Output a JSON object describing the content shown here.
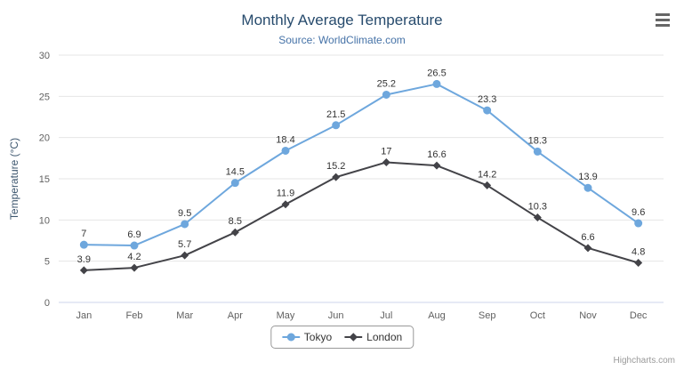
{
  "header": {
    "title": "Monthly Average Temperature",
    "subtitle": "Source: WorldClimate.com"
  },
  "credit": "Highcharts.com",
  "colors": {
    "tokyo": "#6ea7dd",
    "london": "#434348",
    "title": "#274b6d",
    "subtitle": "#4572a7",
    "grid": "#e6e6e6",
    "axis_line": "#ccd6eb",
    "tick_label": "#606060",
    "data_label": "#333333"
  },
  "chart_data": {
    "type": "line",
    "title": "Monthly Average Temperature",
    "subtitle": "Source: WorldClimate.com",
    "categories": [
      "Jan",
      "Feb",
      "Mar",
      "Apr",
      "May",
      "Jun",
      "Jul",
      "Aug",
      "Sep",
      "Oct",
      "Nov",
      "Dec"
    ],
    "series": [
      {
        "name": "Tokyo",
        "color": "#6ea7dd",
        "marker": "circle",
        "values": [
          7,
          6.9,
          9.5,
          14.5,
          18.4,
          21.5,
          25.2,
          26.5,
          23.3,
          18.3,
          13.9,
          9.6
        ]
      },
      {
        "name": "London",
        "color": "#434348",
        "marker": "diamond",
        "values": [
          3.9,
          4.2,
          5.7,
          8.5,
          11.9,
          15.2,
          17,
          16.6,
          14.2,
          10.3,
          6.6,
          4.8
        ]
      }
    ],
    "xlabel": "",
    "ylabel": "Temperature (°C)",
    "ylim": [
      0,
      30
    ],
    "yticks": [
      0,
      5,
      10,
      15,
      20,
      25,
      30
    ],
    "grid": true,
    "data_labels": true,
    "legend_position": "bottom"
  }
}
